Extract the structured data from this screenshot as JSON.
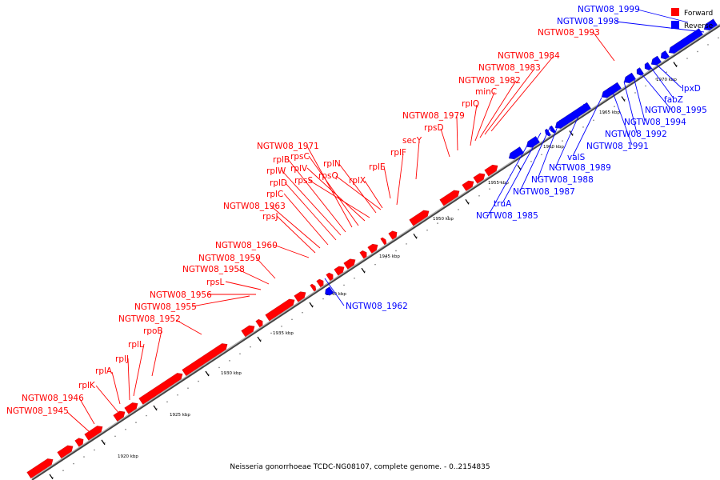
{
  "caption": "Neisseria gonorrhoeae TCDC-NG08107, complete genome. - 0..2154835",
  "legend": {
    "forward_label": "Forward",
    "forward_color": "#ff0000",
    "reverse_label": "Reverse",
    "reverse_color": "#0000ff"
  },
  "scale_labels": [
    "1920 kbp",
    "1925 kbp",
    "1930 kbp",
    "1935 kbp",
    "1940 kbp",
    "1945 kbp",
    "1950 kbp",
    "1955 kbp",
    "1960 kbp",
    "1965 kbp",
    "1970 kbp"
  ],
  "forward_genes": [
    "NGTW08_1945",
    "NGTW08_1946",
    "rplK",
    "rplA",
    "rplJ",
    "rplL",
    "rpoB",
    "NGTW08_1952",
    "NGTW08_1955",
    "NGTW08_1956",
    "rpsL",
    "NGTW08_1958",
    "NGTW08_1959",
    "NGTW08_1960",
    "rpsJ",
    "NGTW08_1963",
    "rplC",
    "rplD",
    "rplW",
    "rplB",
    "NGTW08_1971",
    "rpsC",
    "rplV",
    "rpsS",
    "rplN",
    "rpsQ",
    "rplX",
    "rplE",
    "rplF",
    "secY",
    "rpsD",
    "NGTW08_1979",
    "rplQ",
    "minC",
    "NGTW08_1982",
    "NGTW08_1983",
    "NGTW08_1984",
    "NGTW08_1993"
  ],
  "reverse_genes": [
    "NGTW08_1999",
    "NGTW08_1998",
    "lpxD",
    "fabZ",
    "NGTW08_1995",
    "NGTW08_1994",
    "NGTW08_1992",
    "NGTW08_1991",
    "valS",
    "NGTW08_1989",
    "NGTW08_1988",
    "NGTW08_1987",
    "truA",
    "NGTW08_1985",
    "NGTW08_1962"
  ]
}
